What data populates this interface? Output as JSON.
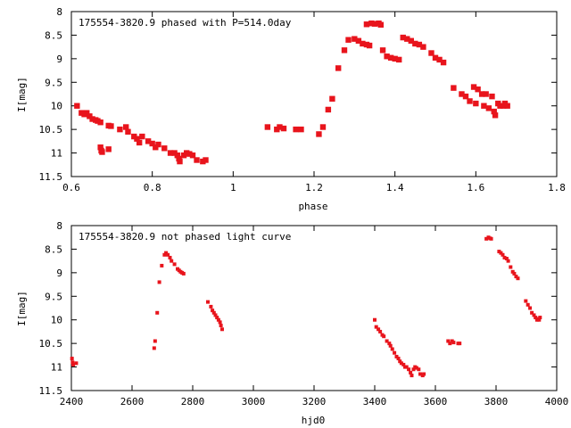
{
  "chart_data": [
    {
      "type": "scatter",
      "title": "175554-3820.9 phased with P=514.0day",
      "xlabel": "phase",
      "ylabel": "I[mag]",
      "xlim": [
        0.6,
        1.8
      ],
      "ylim": [
        8,
        11.5
      ],
      "y_inverted": true,
      "x_ticks": [
        "0.6",
        "0.8",
        "1",
        "1.2",
        "1.4",
        "1.6",
        "1.8"
      ],
      "y_ticks": [
        "8",
        "8.5",
        "9",
        "9.5",
        "10",
        "10.5",
        "11",
        "11.5"
      ],
      "marker_color": "#e8141c",
      "points": [
        [
          0.614,
          10.0
        ],
        [
          0.625,
          10.15
        ],
        [
          0.632,
          10.18
        ],
        [
          0.638,
          10.15
        ],
        [
          0.645,
          10.22
        ],
        [
          0.652,
          10.28
        ],
        [
          0.66,
          10.3
        ],
        [
          0.665,
          10.32
        ],
        [
          0.672,
          10.35
        ],
        [
          0.672,
          10.88
        ],
        [
          0.674,
          10.95
        ],
        [
          0.676,
          10.98
        ],
        [
          0.692,
          10.42
        ],
        [
          0.692,
          10.92
        ],
        [
          0.698,
          10.43
        ],
        [
          0.72,
          10.5
        ],
        [
          0.735,
          10.45
        ],
        [
          0.74,
          10.55
        ],
        [
          0.755,
          10.65
        ],
        [
          0.762,
          10.7
        ],
        [
          0.768,
          10.78
        ],
        [
          0.775,
          10.65
        ],
        [
          0.79,
          10.75
        ],
        [
          0.8,
          10.8
        ],
        [
          0.808,
          10.88
        ],
        [
          0.815,
          10.82
        ],
        [
          0.83,
          10.9
        ],
        [
          0.845,
          11.0
        ],
        [
          0.855,
          11.0
        ],
        [
          0.862,
          11.05
        ],
        [
          0.866,
          11.12
        ],
        [
          0.868,
          11.18
        ],
        [
          0.878,
          11.05
        ],
        [
          0.885,
          11.0
        ],
        [
          0.892,
          11.02
        ],
        [
          0.9,
          11.05
        ],
        [
          0.91,
          11.15
        ],
        [
          0.925,
          11.18
        ],
        [
          0.932,
          11.15
        ],
        [
          1.085,
          10.45
        ],
        [
          1.108,
          10.5
        ],
        [
          1.115,
          10.45
        ],
        [
          1.125,
          10.48
        ],
        [
          1.155,
          10.5
        ],
        [
          1.168,
          10.5
        ],
        [
          1.212,
          10.6
        ],
        [
          1.222,
          10.45
        ],
        [
          1.235,
          10.08
        ],
        [
          1.245,
          9.85
        ],
        [
          1.26,
          9.2
        ],
        [
          1.275,
          8.82
        ],
        [
          1.285,
          8.6
        ],
        [
          1.3,
          8.58
        ],
        [
          1.31,
          8.62
        ],
        [
          1.32,
          8.68
        ],
        [
          1.33,
          8.7
        ],
        [
          1.33,
          8.27
        ],
        [
          1.337,
          8.72
        ],
        [
          1.342,
          8.25
        ],
        [
          1.35,
          8.26
        ],
        [
          1.36,
          8.25
        ],
        [
          1.365,
          8.28
        ],
        [
          1.37,
          8.82
        ],
        [
          1.38,
          8.95
        ],
        [
          1.39,
          8.98
        ],
        [
          1.4,
          9.0
        ],
        [
          1.41,
          9.02
        ],
        [
          1.42,
          8.55
        ],
        [
          1.43,
          8.58
        ],
        [
          1.44,
          8.62
        ],
        [
          1.45,
          8.68
        ],
        [
          1.46,
          8.7
        ],
        [
          1.47,
          8.75
        ],
        [
          1.49,
          8.88
        ],
        [
          1.5,
          8.98
        ],
        [
          1.51,
          9.02
        ],
        [
          1.52,
          9.08
        ],
        [
          1.545,
          9.62
        ],
        [
          1.565,
          9.75
        ],
        [
          1.575,
          9.8
        ],
        [
          1.585,
          9.9
        ],
        [
          1.595,
          9.6
        ],
        [
          1.6,
          9.95
        ],
        [
          1.605,
          9.65
        ],
        [
          1.615,
          9.75
        ],
        [
          1.62,
          10.0
        ],
        [
          1.625,
          9.75
        ],
        [
          1.632,
          10.05
        ],
        [
          1.64,
          9.8
        ],
        [
          1.645,
          10.12
        ],
        [
          1.648,
          10.2
        ],
        [
          1.655,
          9.95
        ],
        [
          1.66,
          10.0
        ],
        [
          1.668,
          10.0
        ],
        [
          1.672,
          9.95
        ],
        [
          1.678,
          10.0
        ]
      ]
    },
    {
      "type": "scatter",
      "title": "175554-3820.9 not phased light curve",
      "xlabel": "hjd0",
      "ylabel": "I[mag]",
      "xlim": [
        2400,
        4000
      ],
      "ylim": [
        8,
        11.5
      ],
      "y_inverted": true,
      "x_ticks": [
        "2400",
        "2600",
        "2800",
        "3000",
        "3200",
        "3400",
        "3600",
        "3800",
        "4000"
      ],
      "y_ticks": [
        "8",
        "8.5",
        "9",
        "9.5",
        "10",
        "10.5",
        "11",
        "11.5"
      ],
      "marker_color": "#e8141c",
      "points": [
        [
          2402,
          10.82
        ],
        [
          2404,
          10.9
        ],
        [
          2406,
          10.95
        ],
        [
          2416,
          10.92
        ],
        [
          2673,
          10.6
        ],
        [
          2676,
          10.45
        ],
        [
          2683,
          9.85
        ],
        [
          2690,
          9.2
        ],
        [
          2698,
          8.85
        ],
        [
          2707,
          8.62
        ],
        [
          2712,
          8.58
        ],
        [
          2718,
          8.62
        ],
        [
          2725,
          8.68
        ],
        [
          2730,
          8.75
        ],
        [
          2740,
          8.82
        ],
        [
          2750,
          8.92
        ],
        [
          2755,
          8.95
        ],
        [
          2760,
          8.98
        ],
        [
          2765,
          9.0
        ],
        [
          2770,
          9.02
        ],
        [
          2850,
          9.62
        ],
        [
          2860,
          9.72
        ],
        [
          2865,
          9.8
        ],
        [
          2870,
          9.85
        ],
        [
          2875,
          9.9
        ],
        [
          2880,
          9.95
        ],
        [
          2885,
          10.0
        ],
        [
          2890,
          10.05
        ],
        [
          2893,
          10.12
        ],
        [
          2897,
          10.2
        ],
        [
          3400,
          10.0
        ],
        [
          3405,
          10.15
        ],
        [
          3412,
          10.2
        ],
        [
          3418,
          10.25
        ],
        [
          3425,
          10.32
        ],
        [
          3430,
          10.35
        ],
        [
          3440,
          10.45
        ],
        [
          3448,
          10.5
        ],
        [
          3452,
          10.55
        ],
        [
          3458,
          10.62
        ],
        [
          3465,
          10.7
        ],
        [
          3472,
          10.78
        ],
        [
          3478,
          10.82
        ],
        [
          3483,
          10.88
        ],
        [
          3488,
          10.92
        ],
        [
          3495,
          10.95
        ],
        [
          3500,
          11.0
        ],
        [
          3505,
          11.0
        ],
        [
          3512,
          11.05
        ],
        [
          3518,
          11.12
        ],
        [
          3522,
          11.18
        ],
        [
          3528,
          11.05
        ],
        [
          3533,
          11.0
        ],
        [
          3538,
          11.02
        ],
        [
          3545,
          11.05
        ],
        [
          3550,
          11.15
        ],
        [
          3558,
          11.18
        ],
        [
          3562,
          11.15
        ],
        [
          3642,
          10.45
        ],
        [
          3648,
          10.5
        ],
        [
          3655,
          10.45
        ],
        [
          3660,
          10.48
        ],
        [
          3675,
          10.5
        ],
        [
          3680,
          10.5
        ],
        [
          3768,
          8.28
        ],
        [
          3775,
          8.25
        ],
        [
          3780,
          8.27
        ],
        [
          3784,
          8.28
        ],
        [
          3810,
          8.55
        ],
        [
          3816,
          8.58
        ],
        [
          3822,
          8.62
        ],
        [
          3828,
          8.68
        ],
        [
          3835,
          8.7
        ],
        [
          3840,
          8.75
        ],
        [
          3848,
          8.88
        ],
        [
          3855,
          8.98
        ],
        [
          3860,
          9.02
        ],
        [
          3866,
          9.08
        ],
        [
          3872,
          9.12
        ],
        [
          3898,
          9.6
        ],
        [
          3905,
          9.68
        ],
        [
          3912,
          9.75
        ],
        [
          3918,
          9.85
        ],
        [
          3925,
          9.9
        ],
        [
          3930,
          9.95
        ],
        [
          3935,
          10.0
        ],
        [
          3938,
          9.98
        ],
        [
          3942,
          10.0
        ],
        [
          3945,
          9.95
        ]
      ]
    }
  ]
}
